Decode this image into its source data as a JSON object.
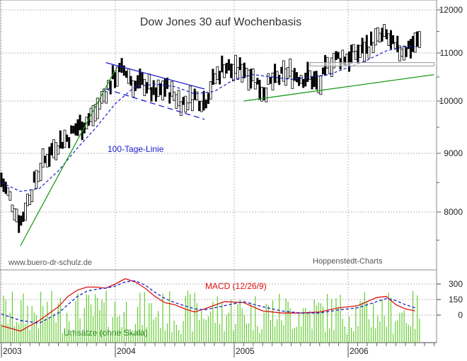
{
  "chart_data": [
    {
      "type": "candlestick-line",
      "title": "Dow Jones 30 auf Wochenbasis",
      "y_axis": {
        "position": "right",
        "ticks": [
          8000,
          9000,
          10000,
          11000,
          12000
        ],
        "tick_labels": [
          "8000",
          "9000",
          "10000",
          "11000",
          "12000"
        ],
        "range": [
          7300,
          12050
        ]
      },
      "x_axis": {
        "range": [
          "2003-01",
          "2006-10"
        ],
        "ticks": [
          "2003",
          "2004",
          "2005",
          "2006"
        ]
      },
      "grid": true,
      "series": [
        {
          "role": "price",
          "style": "bars",
          "color": "#000000",
          "points": [
            [
              "2003-01",
              8550
            ],
            [
              "2003-02",
              8200
            ],
            [
              "2003-03",
              7800
            ],
            [
              "2003-04",
              8300
            ],
            [
              "2003-05",
              8700
            ],
            [
              "2003-06",
              9000
            ],
            [
              "2003-07",
              9200
            ],
            [
              "2003-08",
              9300
            ],
            [
              "2003-09",
              9500
            ],
            [
              "2003-10",
              9600
            ],
            [
              "2003-11",
              9800
            ],
            [
              "2003-12",
              10200
            ],
            [
              "2004-01",
              10550
            ],
            [
              "2004-02",
              10650
            ],
            [
              "2004-03",
              10300
            ],
            [
              "2004-04",
              10400
            ],
            [
              "2004-05",
              10100
            ],
            [
              "2004-06",
              10300
            ],
            [
              "2004-07",
              10100
            ],
            [
              "2004-08",
              9950
            ],
            [
              "2004-09",
              10100
            ],
            [
              "2004-10",
              10000
            ],
            [
              "2004-11",
              10450
            ],
            [
              "2004-12",
              10750
            ],
            [
              "2005-01",
              10600
            ],
            [
              "2005-02",
              10700
            ],
            [
              "2005-03",
              10500
            ],
            [
              "2005-04",
              10200
            ],
            [
              "2005-05",
              10400
            ],
            [
              "2005-06",
              10500
            ],
            [
              "2005-07",
              10600
            ],
            [
              "2005-08",
              10500
            ],
            [
              "2005-09",
              10500
            ],
            [
              "2005-10",
              10300
            ],
            [
              "2005-11",
              10800
            ],
            [
              "2005-12",
              10900
            ],
            [
              "2006-01",
              10900
            ],
            [
              "2006-02",
              11000
            ],
            [
              "2006-03",
              11150
            ],
            [
              "2006-04",
              11300
            ],
            [
              "2006-05",
              11400
            ],
            [
              "2006-06",
              11050
            ],
            [
              "2006-07",
              11100
            ],
            [
              "2006-08",
              11250
            ]
          ]
        },
        {
          "role": "moving-average",
          "name": "100-Tage-Linie",
          "style": "dashed",
          "color": "#1a1acc",
          "points": [
            [
              "2003-01",
              8500
            ],
            [
              "2003-03",
              8350
            ],
            [
              "2003-05",
              8400
            ],
            [
              "2003-07",
              8700
            ],
            [
              "2003-09",
              9100
            ],
            [
              "2003-11",
              9500
            ],
            [
              "2004-01",
              9950
            ],
            [
              "2004-03",
              10300
            ],
            [
              "2004-05",
              10350
            ],
            [
              "2004-07",
              10300
            ],
            [
              "2004-09",
              10150
            ],
            [
              "2004-11",
              10200
            ],
            [
              "2005-01",
              10450
            ],
            [
              "2005-03",
              10550
            ],
            [
              "2005-05",
              10500
            ],
            [
              "2005-07",
              10450
            ],
            [
              "2005-09",
              10500
            ],
            [
              "2005-11",
              10550
            ],
            [
              "2006-01",
              10700
            ],
            [
              "2006-03",
              10850
            ],
            [
              "2006-05",
              11050
            ],
            [
              "2006-07",
              11150
            ],
            [
              "2006-08",
              11150
            ]
          ]
        }
      ],
      "trendlines": [
        {
          "color": "#1a9a1a",
          "from": [
            "2003-03",
            7400
          ],
          "to": [
            "2004-01",
            10650
          ]
        },
        {
          "color": "#1a9a1a",
          "from": [
            "2005-02",
            10000
          ],
          "to": [
            "2006-10",
            10550
          ]
        },
        {
          "color": "#1a1acc",
          "from": [
            "2003-12",
            10800
          ],
          "to": [
            "2004-10",
            10250
          ]
        },
        {
          "color": "#1a1acc",
          "from": [
            "2003-12",
            10250
          ],
          "to": [
            "2004-10",
            9650
          ],
          "style": "dashed"
        }
      ],
      "resistance_band": {
        "from": "2005-09",
        "to": "2006-10",
        "range": [
          10730,
          10800
        ]
      },
      "annotations": [
        "100-Tage-Linie",
        "www.buero-dr-schulz.de",
        "Hoppenstedt-Charts"
      ]
    },
    {
      "type": "line-bar",
      "y_axis": {
        "position": "right",
        "ticks": [
          300,
          150,
          0
        ],
        "tick_labels": [
          "300",
          "150",
          "0"
        ],
        "range": [
          -90,
          360
        ]
      },
      "x_axis": {
        "range": [
          "2003-01",
          "2006-10"
        ],
        "tick_labels": [
          "2003",
          "2004",
          "2005",
          "2006"
        ]
      },
      "series": [
        {
          "role": "macd",
          "name": "MACD (12/26/9)",
          "style": "line",
          "color": "#dd1111",
          "points": [
            [
              "2003-01",
              -40
            ],
            [
              "2003-03",
              -60
            ],
            [
              "2003-05",
              -20
            ],
            [
              "2003-07",
              80
            ],
            [
              "2003-08",
              180
            ],
            [
              "2003-09",
              240
            ],
            [
              "2003-10",
              270
            ],
            [
              "2003-11",
              270
            ],
            [
              "2003-12",
              260
            ],
            [
              "2004-01",
              300
            ],
            [
              "2004-02",
              350
            ],
            [
              "2004-03",
              320
            ],
            [
              "2004-04",
              260
            ],
            [
              "2004-05",
              180
            ],
            [
              "2004-06",
              120
            ],
            [
              "2004-07",
              100
            ],
            [
              "2004-08",
              60
            ],
            [
              "2004-09",
              30
            ],
            [
              "2004-10",
              60
            ],
            [
              "2004-12",
              130
            ],
            [
              "2005-02",
              120
            ],
            [
              "2005-04",
              40
            ],
            [
              "2005-06",
              20
            ],
            [
              "2005-08",
              20
            ],
            [
              "2005-10",
              30
            ],
            [
              "2005-12",
              70
            ],
            [
              "2006-02",
              90
            ],
            [
              "2006-04",
              170
            ],
            [
              "2006-05",
              180
            ],
            [
              "2006-06",
              100
            ],
            [
              "2006-07",
              60
            ],
            [
              "2006-08",
              40
            ]
          ]
        },
        {
          "role": "signal",
          "style": "dashed",
          "color": "#1a1acc",
          "points": [
            [
              "2003-01",
              10
            ],
            [
              "2003-03",
              -20
            ],
            [
              "2003-05",
              -30
            ],
            [
              "2003-07",
              20
            ],
            [
              "2003-08",
              100
            ],
            [
              "2003-09",
              180
            ],
            [
              "2003-10",
              230
            ],
            [
              "2003-11",
              250
            ],
            [
              "2003-12",
              260
            ],
            [
              "2004-01",
              280
            ],
            [
              "2004-02",
              320
            ],
            [
              "2004-03",
              330
            ],
            [
              "2004-04",
              290
            ],
            [
              "2004-05",
              220
            ],
            [
              "2004-06",
              160
            ],
            [
              "2004-07",
              120
            ],
            [
              "2004-08",
              90
            ],
            [
              "2004-09",
              60
            ],
            [
              "2004-10",
              50
            ],
            [
              "2004-12",
              90
            ],
            [
              "2005-02",
              130
            ],
            [
              "2005-04",
              80
            ],
            [
              "2005-06",
              40
            ],
            [
              "2005-08",
              20
            ],
            [
              "2005-10",
              20
            ],
            [
              "2005-12",
              50
            ],
            [
              "2006-02",
              70
            ],
            [
              "2006-04",
              130
            ],
            [
              "2006-05",
              160
            ],
            [
              "2006-06",
              140
            ],
            [
              "2006-07",
              100
            ],
            [
              "2006-08",
              70
            ]
          ]
        },
        {
          "role": "volume",
          "name": "Umsätze (ohne Skala)",
          "style": "bars",
          "color": "#66cc33"
        }
      ]
    }
  ]
}
